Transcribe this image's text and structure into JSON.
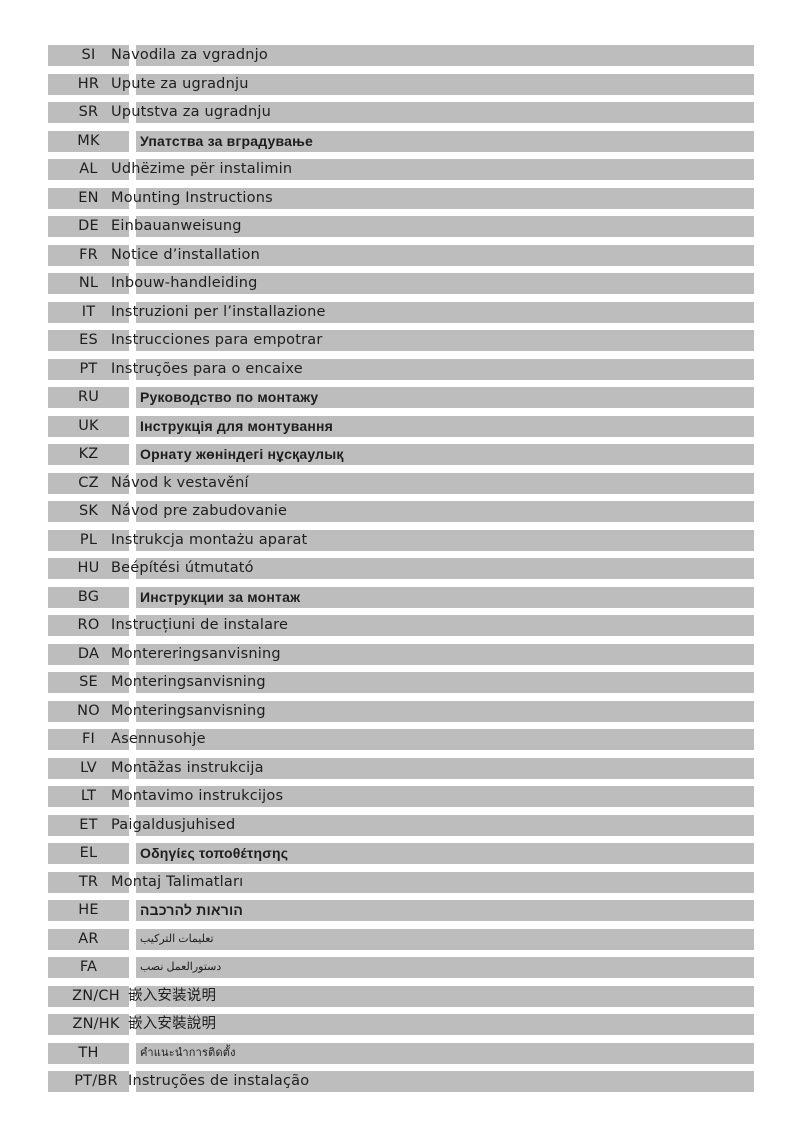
{
  "rows": [
    {
      "code": "SI",
      "title": "Navodila za vgradnjo"
    },
    {
      "code": "HR",
      "title": "Upute za ugradnju"
    },
    {
      "code": "SR",
      "title": "Uputstva za ugradnju"
    },
    {
      "code": "MK",
      "title": "Упатства за вградување"
    },
    {
      "code": "AL",
      "title": "Udhëzime për instalimin"
    },
    {
      "code": "EN",
      "title": "Mounting Instructions"
    },
    {
      "code": "DE",
      "title": "Einbauanweisung"
    },
    {
      "code": "FR",
      "title": "Notice d’installation"
    },
    {
      "code": "NL",
      "title": "Inbouw-handleiding"
    },
    {
      "code": "IT",
      "title": "Instruzioni per l’installazione"
    },
    {
      "code": "ES",
      "title": "Instrucciones para empotrar"
    },
    {
      "code": "PT",
      "title": "Instruções para o encaixe"
    },
    {
      "code": "RU",
      "title": "Руководство по монтажу"
    },
    {
      "code": "UK",
      "title": "Інструкція для монтування"
    },
    {
      "code": "KZ",
      "title": "Орнату жөніндегі нұсқаулық"
    },
    {
      "code": "CZ",
      "title": "Návod k vestavění"
    },
    {
      "code": "SK",
      "title": "Návod pre zabudovanie"
    },
    {
      "code": "PL",
      "title": "Instrukcja montażu aparat"
    },
    {
      "code": "HU",
      "title": "Beépítési útmutató"
    },
    {
      "code": "BG",
      "title": "Инструкции за монтаж"
    },
    {
      "code": "RO",
      "title": "Instrucțiuni de instalare"
    },
    {
      "code": "DA",
      "title": "Montereringsanvisning"
    },
    {
      "code": "SE",
      "title": "Monteringsanvisning"
    },
    {
      "code": "NO",
      "title": "Monteringsanvisning"
    },
    {
      "code": "FI",
      "title": "Asennusohje"
    },
    {
      "code": "LV",
      "title": "Montāžas instrukcija"
    },
    {
      "code": "LT",
      "title": "Montavimo instrukcijos"
    },
    {
      "code": "ET",
      "title": "Paigaldusjuhised"
    },
    {
      "code": "EL",
      "title": "Οδηγίες τοποθέτησης"
    },
    {
      "code": "TR",
      "title": "Montaj Talimatları"
    },
    {
      "code": "HE",
      "title": "הוראות להרכבה"
    },
    {
      "code": "AR",
      "title": "تعليمات التركيب"
    },
    {
      "code": "FA",
      "title": "دستورالعمل نصب"
    },
    {
      "code": "ZN/CH",
      "title": "嵌入安装说明"
    },
    {
      "code": "ZN/HK",
      "title": "嵌入安裝說明"
    },
    {
      "code": "TH",
      "title": "คำแนะนำการติดตั้ง"
    },
    {
      "code": "PT/BR",
      "title": "Instruções de instalação"
    }
  ]
}
